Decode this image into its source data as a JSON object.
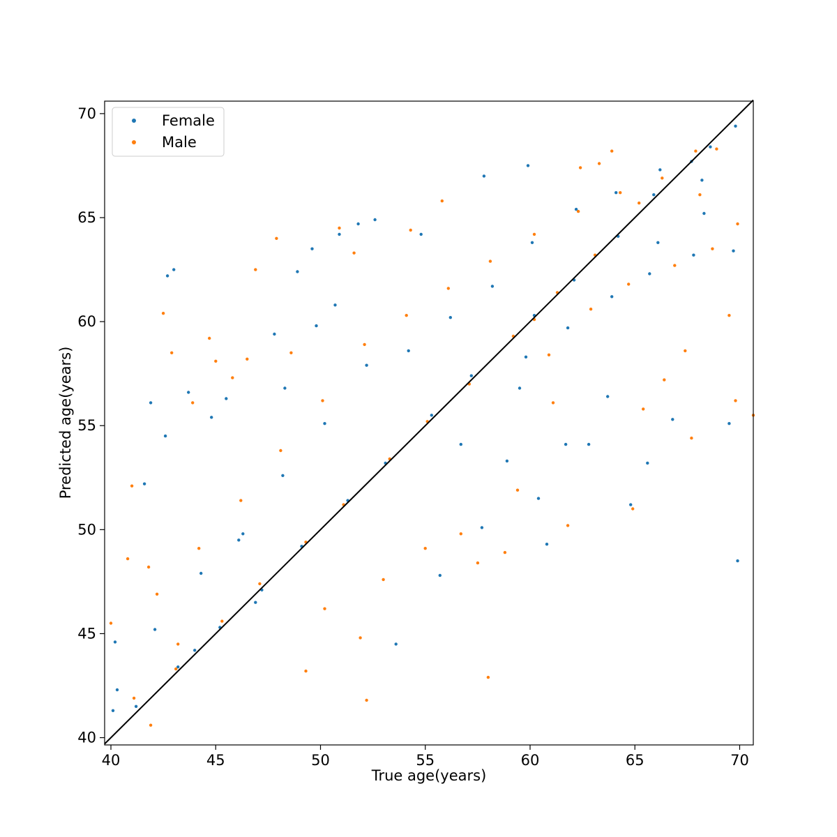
{
  "chart_data": {
    "type": "scatter",
    "title": "",
    "xlabel": "True age(years)",
    "ylabel": "Predicted age(years)",
    "xlim": [
      39.7,
      70.65
    ],
    "ylim": [
      39.65,
      70.6
    ],
    "xticks": [
      40,
      45,
      50,
      55,
      60,
      65,
      70
    ],
    "yticks": [
      40,
      45,
      50,
      55,
      60,
      65,
      70
    ],
    "legend_position": "top-left",
    "grid": false,
    "reference_line": {
      "from": [
        39.7,
        39.7
      ],
      "to": [
        70.65,
        70.65
      ],
      "color": "#000000",
      "label": ""
    },
    "series": [
      {
        "name": "Female",
        "color": "#1f77b4",
        "points": [
          [
            40.1,
            41.3
          ],
          [
            40.2,
            44.6
          ],
          [
            40.3,
            42.3
          ],
          [
            41.6,
            52.2
          ],
          [
            41.9,
            56.1
          ],
          [
            42.6,
            54.5
          ],
          [
            42.7,
            62.2
          ],
          [
            43.0,
            62.5
          ],
          [
            43.7,
            56.6
          ],
          [
            44.0,
            44.2
          ],
          [
            44.8,
            55.4
          ],
          [
            45.5,
            56.3
          ],
          [
            46.3,
            49.8
          ],
          [
            46.9,
            46.5
          ],
          [
            47.8,
            59.4
          ],
          [
            48.3,
            56.8
          ],
          [
            48.9,
            62.4
          ],
          [
            49.8,
            59.8
          ],
          [
            49.6,
            63.5
          ],
          [
            50.7,
            60.8
          ],
          [
            50.9,
            64.2
          ],
          [
            51.8,
            64.7
          ],
          [
            52.6,
            64.9
          ],
          [
            53.6,
            44.5
          ],
          [
            54.8,
            64.2
          ],
          [
            55.7,
            47.8
          ],
          [
            56.7,
            54.1
          ],
          [
            57.8,
            67.0
          ],
          [
            57.7,
            50.1
          ],
          [
            58.9,
            53.3
          ],
          [
            59.9,
            67.5
          ],
          [
            60.4,
            51.5
          ],
          [
            60.8,
            49.3
          ],
          [
            61.7,
            54.1
          ],
          [
            62.8,
            54.1
          ],
          [
            63.7,
            56.4
          ],
          [
            64.8,
            51.2
          ],
          [
            65.6,
            53.2
          ],
          [
            66.1,
            63.8
          ],
          [
            66.8,
            55.3
          ],
          [
            67.7,
            67.7
          ],
          [
            68.6,
            68.4
          ],
          [
            69.5,
            55.1
          ],
          [
            69.9,
            48.5
          ],
          [
            69.8,
            69.4
          ],
          [
            59.5,
            56.8
          ],
          [
            60.2,
            60.3
          ],
          [
            62.1,
            62.0
          ],
          [
            64.2,
            64.1
          ],
          [
            65.9,
            66.1
          ],
          [
            68.3,
            65.2
          ],
          [
            69.7,
            63.4
          ],
          [
            57.2,
            57.4
          ],
          [
            55.3,
            55.5
          ],
          [
            53.1,
            53.2
          ],
          [
            51.3,
            51.4
          ],
          [
            49.1,
            49.2
          ],
          [
            47.2,
            47.1
          ],
          [
            45.2,
            45.3
          ],
          [
            43.2,
            43.4
          ],
          [
            41.2,
            41.5
          ],
          [
            42.1,
            45.2
          ],
          [
            44.3,
            47.9
          ],
          [
            46.1,
            49.5
          ],
          [
            48.2,
            52.6
          ],
          [
            50.2,
            55.1
          ],
          [
            52.2,
            57.9
          ],
          [
            54.2,
            58.6
          ],
          [
            56.2,
            60.2
          ],
          [
            58.2,
            61.7
          ],
          [
            60.1,
            63.8
          ],
          [
            62.2,
            65.4
          ],
          [
            64.1,
            66.2
          ],
          [
            66.2,
            67.3
          ],
          [
            68.2,
            66.8
          ],
          [
            59.8,
            58.3
          ],
          [
            61.8,
            59.7
          ],
          [
            63.9,
            61.2
          ],
          [
            65.7,
            62.3
          ],
          [
            67.8,
            63.2
          ]
        ]
      },
      {
        "name": "Male",
        "color": "#ff7f0e",
        "points": [
          [
            40.0,
            45.5
          ],
          [
            40.8,
            48.6
          ],
          [
            41.0,
            52.1
          ],
          [
            41.8,
            48.2
          ],
          [
            41.9,
            40.6
          ],
          [
            42.5,
            60.4
          ],
          [
            42.9,
            58.5
          ],
          [
            43.2,
            44.5
          ],
          [
            43.9,
            56.1
          ],
          [
            44.7,
            59.2
          ],
          [
            45.0,
            58.1
          ],
          [
            45.8,
            57.3
          ],
          [
            46.5,
            58.2
          ],
          [
            46.9,
            62.5
          ],
          [
            47.9,
            64.0
          ],
          [
            48.6,
            58.5
          ],
          [
            49.3,
            43.2
          ],
          [
            50.2,
            46.2
          ],
          [
            50.9,
            64.5
          ],
          [
            51.6,
            63.3
          ],
          [
            51.9,
            44.8
          ],
          [
            52.2,
            41.8
          ],
          [
            53.0,
            47.6
          ],
          [
            54.3,
            64.4
          ],
          [
            55.0,
            49.1
          ],
          [
            55.8,
            65.8
          ],
          [
            56.7,
            49.8
          ],
          [
            57.5,
            48.4
          ],
          [
            58.0,
            42.9
          ],
          [
            58.8,
            48.9
          ],
          [
            59.4,
            51.9
          ],
          [
            60.2,
            60.1
          ],
          [
            61.1,
            56.1
          ],
          [
            61.8,
            50.2
          ],
          [
            62.4,
            67.4
          ],
          [
            63.3,
            67.6
          ],
          [
            63.9,
            68.2
          ],
          [
            64.9,
            51.0
          ],
          [
            65.4,
            55.8
          ],
          [
            66.4,
            57.2
          ],
          [
            67.4,
            58.6
          ],
          [
            67.7,
            54.4
          ],
          [
            67.9,
            68.2
          ],
          [
            68.9,
            68.3
          ],
          [
            69.8,
            56.2
          ],
          [
            70.65,
            55.5
          ],
          [
            65.2,
            65.7
          ],
          [
            63.1,
            63.2
          ],
          [
            61.3,
            61.4
          ],
          [
            59.2,
            59.3
          ],
          [
            57.1,
            57.0
          ],
          [
            55.1,
            55.2
          ],
          [
            53.3,
            53.4
          ],
          [
            51.1,
            51.2
          ],
          [
            49.3,
            49.4
          ],
          [
            47.1,
            47.4
          ],
          [
            45.3,
            45.6
          ],
          [
            43.1,
            43.3
          ],
          [
            41.1,
            41.9
          ],
          [
            42.2,
            46.9
          ],
          [
            44.2,
            49.1
          ],
          [
            46.2,
            51.4
          ],
          [
            48.1,
            53.8
          ],
          [
            50.1,
            56.2
          ],
          [
            52.1,
            58.9
          ],
          [
            54.1,
            60.3
          ],
          [
            56.1,
            61.6
          ],
          [
            58.1,
            62.9
          ],
          [
            60.2,
            64.2
          ],
          [
            62.3,
            65.3
          ],
          [
            64.3,
            66.2
          ],
          [
            66.3,
            66.9
          ],
          [
            68.1,
            66.1
          ],
          [
            69.9,
            64.7
          ],
          [
            60.9,
            58.4
          ],
          [
            62.9,
            60.6
          ],
          [
            64.7,
            61.8
          ],
          [
            66.9,
            62.7
          ],
          [
            68.7,
            63.5
          ],
          [
            69.5,
            60.3
          ]
        ]
      }
    ]
  }
}
